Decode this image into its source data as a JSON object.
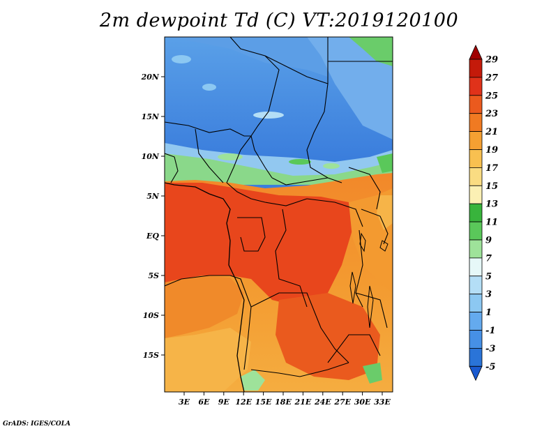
{
  "title": "2m dewpoint Td (C) VT:2019120100",
  "credit": "GrADS: IGES/COLA",
  "lat_labels": [
    "20N",
    "15N",
    "10N",
    "5N",
    "EQ",
    "5S",
    "10S",
    "15S"
  ],
  "lon_labels": [
    "3E",
    "6E",
    "9E",
    "12E",
    "15E",
    "18E",
    "21E",
    "24E",
    "27E",
    "30E",
    "33E"
  ],
  "colorbar": {
    "levels": [
      "29",
      "27",
      "25",
      "23",
      "21",
      "19",
      "17",
      "15",
      "13",
      "11",
      "9",
      "7",
      "5",
      "3",
      "1",
      "-1",
      "-3",
      "-5"
    ],
    "colors": [
      "#a00000",
      "#c41a0a",
      "#e0321a",
      "#eb5a1e",
      "#f07a22",
      "#f5a032",
      "#f8c050",
      "#fadc82",
      "#fbf0b4",
      "#38b43c",
      "#5ac85a",
      "#9ee29a",
      "#e6f8f8",
      "#b4def6",
      "#8cc8f2",
      "#64aaee",
      "#4690e6",
      "#2a74d8",
      "#1a5ad0"
    ]
  },
  "colors": {
    "desert_blue": "#3a7ddc",
    "sahel_lightblue": "#7ab6ee",
    "green": "#66cc66",
    "red_orange": "#e84a1c",
    "orange": "#f29030",
    "light_orange": "#f6b448"
  }
}
